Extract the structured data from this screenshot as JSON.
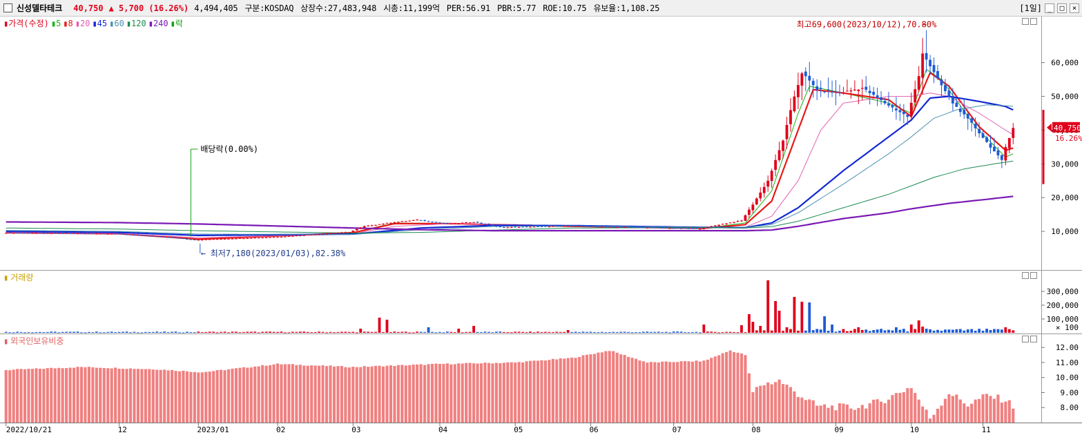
{
  "header": {
    "name": "신성델타테크",
    "price": "40,750",
    "change": "▲ 5,700 (16.26%)",
    "volume": "4,494,405",
    "market": "구분:KOSDAQ",
    "shares": "상장수:27,483,948",
    "mcap": "시총:11,199억",
    "per": "PER:56.91",
    "pbr": "PBR:5.77",
    "roe": "ROE:10.75",
    "retention": "유보율:1,108.25",
    "period": "[1일]"
  },
  "colors": {
    "up": "#e0001b",
    "down": "#1e5bd6",
    "ma5": "#12b512",
    "ma8": "#e81818",
    "ma20": "#e060b0",
    "ma45": "#1228d2",
    "ma60": "#4a90b0",
    "ma120": "#1a8a50",
    "ma240": "#7a1ab4"
  },
  "price_legend": [
    {
      "label": "가격(수정)",
      "color": "#e0001b"
    },
    {
      "label": "5",
      "color": "#12b512"
    },
    {
      "label": "8",
      "color": "#e81818"
    },
    {
      "label": "20",
      "color": "#e060b0"
    },
    {
      "label": "45",
      "color": "#1228d2"
    },
    {
      "label": "60",
      "color": "#4a90b0"
    },
    {
      "label": "120",
      "color": "#1a8a50"
    },
    {
      "label": "240",
      "color": "#7a1ab4"
    },
    {
      "label": "락",
      "color": "#12a012"
    }
  ],
  "volume_legend": "거래량",
  "foreign_legend": "외국인보유비중",
  "chart_data": [
    {
      "type": "candlestick",
      "name": "price",
      "ylim": [
        0,
        72000
      ],
      "yticks": [
        10000,
        20000,
        30000,
        40000,
        50000,
        60000
      ],
      "ytick_labels": [
        "10,000",
        "20,000",
        "30,000",
        "40,000",
        "50,000",
        "60,000"
      ],
      "x_ticks": [
        {
          "label": "2022/10/21",
          "i": 0
        },
        {
          "label": "12",
          "i": 30
        },
        {
          "label": "2023/01",
          "i": 51
        },
        {
          "label": "02",
          "i": 72
        },
        {
          "label": "03",
          "i": 92
        },
        {
          "label": "04",
          "i": 115
        },
        {
          "label": "05",
          "i": 135
        },
        {
          "label": "06",
          "i": 155
        },
        {
          "label": "07",
          "i": 177
        },
        {
          "label": "08",
          "i": 198
        },
        {
          "label": "09",
          "i": 220
        },
        {
          "label": "10",
          "i": 240
        },
        {
          "label": "11",
          "i": 259
        }
      ],
      "n_bars": 268,
      "anchors": [
        [
          0,
          9600
        ],
        [
          30,
          9300
        ],
        [
          45,
          8200
        ],
        [
          51,
          7500
        ],
        [
          72,
          8300
        ],
        [
          92,
          9800
        ],
        [
          96,
          11500
        ],
        [
          103,
          12600
        ],
        [
          110,
          13400
        ],
        [
          118,
          12200
        ],
        [
          125,
          12800
        ],
        [
          132,
          11200
        ],
        [
          150,
          11600
        ],
        [
          165,
          11300
        ],
        [
          185,
          10800
        ],
        [
          190,
          12000
        ],
        [
          196,
          13200
        ],
        [
          199,
          18000
        ],
        [
          203,
          25000
        ],
        [
          207,
          37000
        ],
        [
          210,
          50000
        ],
        [
          212,
          57000
        ],
        [
          216,
          52000
        ],
        [
          222,
          51000
        ],
        [
          228,
          52500
        ],
        [
          234,
          48000
        ],
        [
          237,
          46000
        ],
        [
          240,
          44000
        ],
        [
          243,
          56000
        ],
        [
          244,
          63000
        ],
        [
          248,
          55000
        ],
        [
          252,
          48000
        ],
        [
          257,
          42000
        ],
        [
          262,
          35000
        ],
        [
          265,
          31000
        ],
        [
          266,
          35000
        ],
        [
          268,
          40750
        ]
      ],
      "highlight": {
        "i": 244,
        "high": 69600,
        "label": "최고69,600(2023/10/12),70.80%"
      },
      "low_point": {
        "i": 52,
        "low": 7180,
        "label": "최저7,180(2023/01/03),82.38%"
      },
      "dividend": {
        "i": 49,
        "label": "배당락(0.00%)"
      },
      "last": {
        "price_label": "40,750",
        "pct_label": "16.26%",
        "value": 40750
      },
      "ma_series": [
        {
          "name": "5",
          "anchors": [
            [
              0,
              9600
            ],
            [
              30,
              9300
            ],
            [
              51,
              7600
            ],
            [
              92,
              9700
            ],
            [
              103,
              12500
            ],
            [
              118,
              12300
            ],
            [
              150,
              11500
            ],
            [
              185,
              10900
            ],
            [
              196,
              12500
            ],
            [
              203,
              22000
            ],
            [
              210,
              45000
            ],
            [
              213,
              53000
            ],
            [
              222,
              51000
            ],
            [
              234,
              48000
            ],
            [
              240,
              45000
            ],
            [
              244,
              58000
            ],
            [
              248,
              55000
            ],
            [
              257,
              41000
            ],
            [
              265,
              32000
            ],
            [
              268,
              33500
            ]
          ]
        },
        {
          "name": "8",
          "anchors": [
            [
              0,
              9600
            ],
            [
              30,
              9300
            ],
            [
              51,
              7700
            ],
            [
              92,
              9600
            ],
            [
              103,
              12300
            ],
            [
              118,
              12300
            ],
            [
              150,
              11500
            ],
            [
              185,
              10900
            ],
            [
              196,
              12000
            ],
            [
              203,
              19000
            ],
            [
              210,
              40000
            ],
            [
              214,
              52000
            ],
            [
              222,
              51000
            ],
            [
              234,
              49000
            ],
            [
              240,
              44000
            ],
            [
              245,
              57000
            ],
            [
              250,
              53000
            ],
            [
              258,
              41000
            ],
            [
              265,
              34000
            ],
            [
              268,
              35000
            ]
          ]
        },
        {
          "name": "20",
          "anchors": [
            [
              0,
              9700
            ],
            [
              30,
              9400
            ],
            [
              51,
              8100
            ],
            [
              92,
              9300
            ],
            [
              103,
              11500
            ],
            [
              118,
              12300
            ],
            [
              150,
              11600
            ],
            [
              185,
              11000
            ],
            [
              196,
              11200
            ],
            [
              203,
              14500
            ],
            [
              210,
              25000
            ],
            [
              216,
              40000
            ],
            [
              222,
              48000
            ],
            [
              234,
              50000
            ],
            [
              240,
              50000
            ],
            [
              245,
              51000
            ],
            [
              250,
              50000
            ],
            [
              258,
              45000
            ],
            [
              265,
              40000
            ],
            [
              268,
              38000
            ]
          ]
        },
        {
          "name": "45",
          "anchors": [
            [
              0,
              10000
            ],
            [
              30,
              9700
            ],
            [
              51,
              8800
            ],
            [
              92,
              9200
            ],
            [
              110,
              11000
            ],
            [
              130,
              11800
            ],
            [
              150,
              11700
            ],
            [
              185,
              11200
            ],
            [
              196,
              11100
            ],
            [
              203,
              12500
            ],
            [
              210,
              17000
            ],
            [
              222,
              28000
            ],
            [
              234,
              38000
            ],
            [
              240,
              43000
            ],
            [
              245,
              49500
            ],
            [
              250,
              50000
            ],
            [
              258,
              48500
            ],
            [
              265,
              47000
            ],
            [
              268,
              45500
            ]
          ]
        },
        {
          "name": "60",
          "anchors": [
            [
              0,
              10300
            ],
            [
              30,
              10000
            ],
            [
              51,
              9200
            ],
            [
              92,
              9100
            ],
            [
              110,
              10500
            ],
            [
              130,
              11500
            ],
            [
              150,
              11600
            ],
            [
              185,
              11200
            ],
            [
              196,
              11100
            ],
            [
              203,
              12000
            ],
            [
              210,
              15500
            ],
            [
              222,
              24000
            ],
            [
              234,
              33000
            ],
            [
              240,
              38000
            ],
            [
              246,
              43500
            ],
            [
              252,
              46000
            ],
            [
              260,
              47500
            ],
            [
              268,
              47000
            ]
          ]
        },
        {
          "name": "120",
          "anchors": [
            [
              0,
              11000
            ],
            [
              30,
              10700
            ],
            [
              51,
              10200
            ],
            [
              92,
              9500
            ],
            [
              110,
              9700
            ],
            [
              130,
              10400
            ],
            [
              150,
              11000
            ],
            [
              185,
              11100
            ],
            [
              196,
              11000
            ],
            [
              203,
              11400
            ],
            [
              210,
              13000
            ],
            [
              222,
              17000
            ],
            [
              234,
              21000
            ],
            [
              240,
              23500
            ],
            [
              246,
              26000
            ],
            [
              254,
              28500
            ],
            [
              262,
              30000
            ],
            [
              268,
              31000
            ]
          ]
        },
        {
          "name": "240",
          "anchors": [
            [
              0,
              12800
            ],
            [
              30,
              12600
            ],
            [
              51,
              12200
            ],
            [
              92,
              11000
            ],
            [
              110,
              10500
            ],
            [
              130,
              10200
            ],
            [
              150,
              10200
            ],
            [
              185,
              10200
            ],
            [
              196,
              10200
            ],
            [
              203,
              10400
            ],
            [
              210,
              11500
            ],
            [
              222,
              13800
            ],
            [
              234,
              15500
            ],
            [
              240,
              16700
            ],
            [
              250,
              18300
            ],
            [
              260,
              19500
            ],
            [
              268,
              20500
            ]
          ]
        }
      ]
    },
    {
      "type": "bar",
      "name": "volume",
      "ylim": [
        0,
        380000
      ],
      "yticks": [
        100000,
        200000,
        300000
      ],
      "ytick_labels": [
        "100,000",
        "200,000",
        "300,000"
      ],
      "unit": "× 100",
      "n_bars": 268,
      "spikes": [
        [
          94,
          30000
        ],
        [
          99,
          110000
        ],
        [
          101,
          95000
        ],
        [
          112,
          40000
        ],
        [
          120,
          30000
        ],
        [
          124,
          50000
        ],
        [
          149,
          20000
        ],
        [
          185,
          60000
        ],
        [
          195,
          55000
        ],
        [
          197,
          135000
        ],
        [
          198,
          80000
        ],
        [
          200,
          50000
        ],
        [
          202,
          380000
        ],
        [
          204,
          230000
        ],
        [
          205,
          160000
        ],
        [
          207,
          40000
        ],
        [
          209,
          260000
        ],
        [
          211,
          225000
        ],
        [
          213,
          220000
        ],
        [
          217,
          120000
        ],
        [
          219,
          60000
        ],
        [
          226,
          40000
        ],
        [
          230,
          20000
        ],
        [
          236,
          40000
        ],
        [
          240,
          60000
        ],
        [
          242,
          90000
        ],
        [
          243,
          45000
        ],
        [
          244,
          30000
        ],
        [
          265,
          40000
        ],
        [
          268,
          40000
        ]
      ]
    },
    {
      "type": "bar",
      "name": "foreign_ratio",
      "ylim": [
        7.0,
        12.7
      ],
      "yticks": [
        8,
        9,
        10,
        11,
        12
      ],
      "ytick_labels": [
        "8.00",
        "9.00",
        "10.00",
        "11.00",
        "12.00"
      ],
      "n_bars": 268,
      "anchors": [
        [
          0,
          10.5
        ],
        [
          20,
          10.7
        ],
        [
          40,
          10.55
        ],
        [
          52,
          10.35
        ],
        [
          72,
          10.9
        ],
        [
          92,
          10.7
        ],
        [
          115,
          10.9
        ],
        [
          135,
          11.0
        ],
        [
          150,
          11.3
        ],
        [
          160,
          11.8
        ],
        [
          170,
          11.0
        ],
        [
          185,
          11.1
        ],
        [
          192,
          11.8
        ],
        [
          196,
          11.5
        ],
        [
          198,
          9.0
        ],
        [
          200,
          9.5
        ],
        [
          205,
          9.8
        ],
        [
          210,
          8.9
        ],
        [
          215,
          8.1
        ],
        [
          225,
          8.0
        ],
        [
          232,
          8.4
        ],
        [
          240,
          9.4
        ],
        [
          243,
          8.1
        ],
        [
          245,
          7.3
        ],
        [
          250,
          9.0
        ],
        [
          255,
          8.2
        ],
        [
          260,
          8.8
        ],
        [
          265,
          8.5
        ],
        [
          268,
          7.9
        ]
      ]
    }
  ]
}
